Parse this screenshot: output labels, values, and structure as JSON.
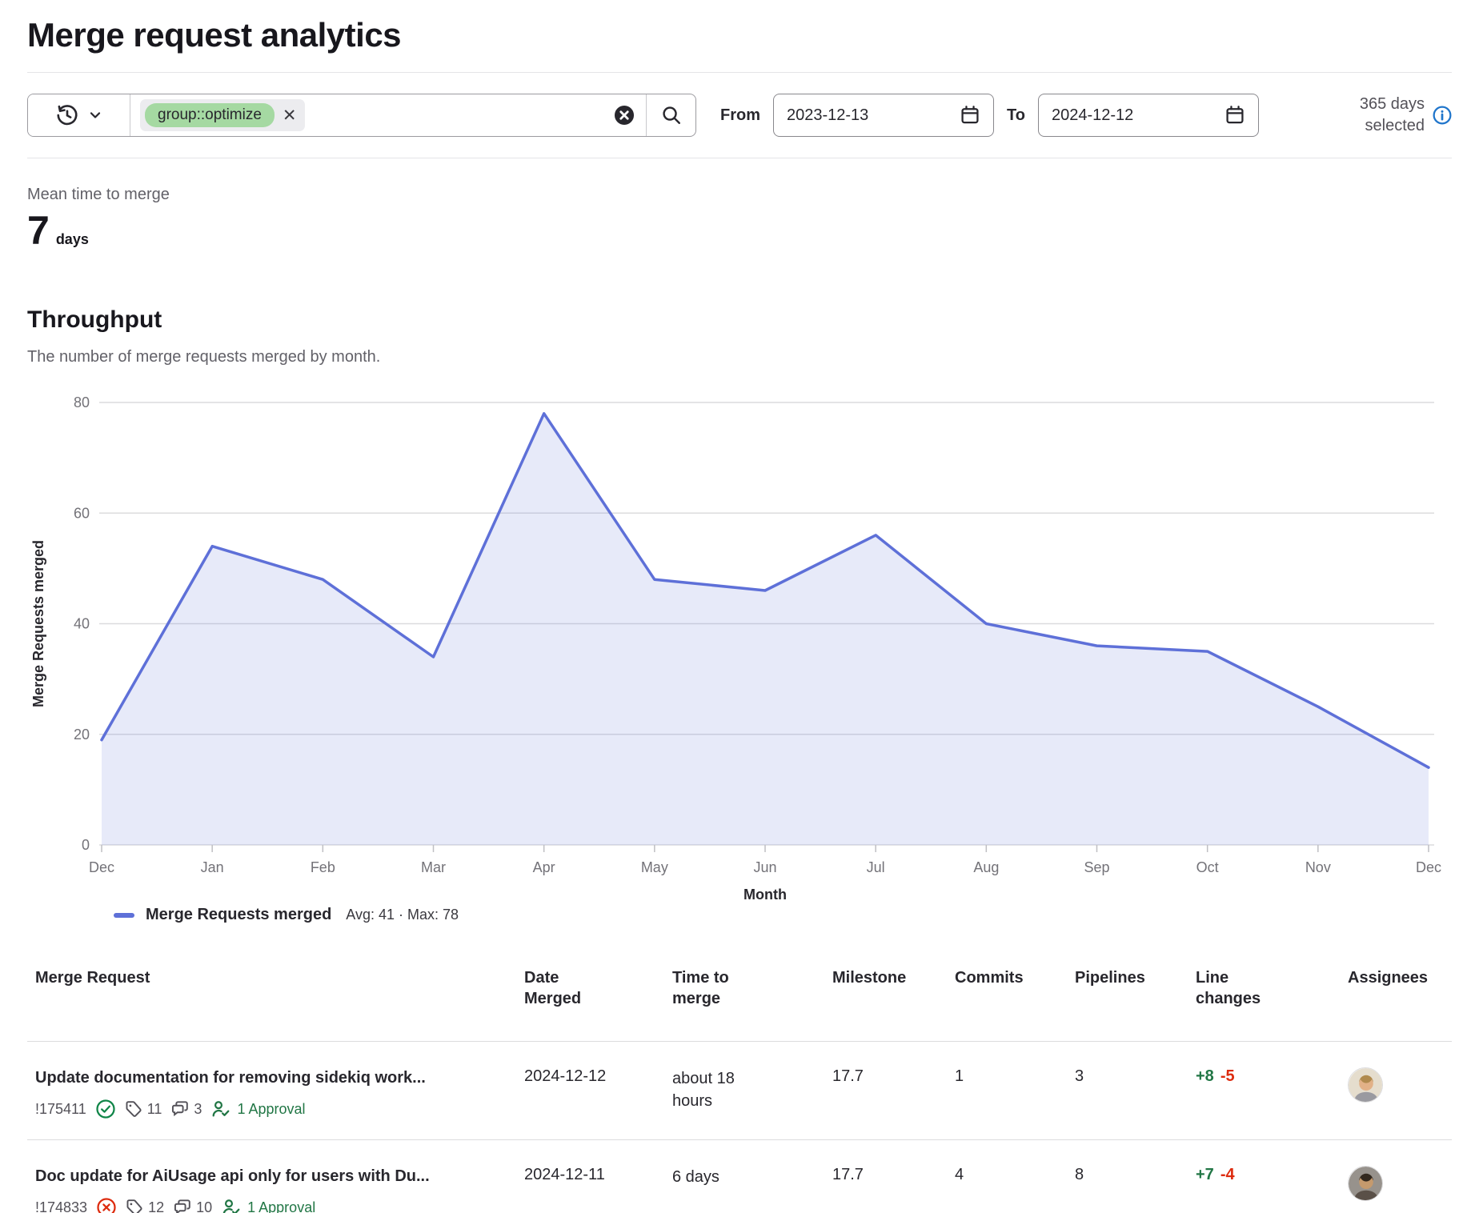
{
  "page": {
    "title": "Merge request analytics"
  },
  "filter_bar": {
    "token": "group::optimize",
    "from_label": "From",
    "from_value": "2023-12-13",
    "to_label": "To",
    "to_value": "2024-12-12",
    "days_selected": "365 days selected"
  },
  "icons": {
    "history": "clock-with-undo-arrow",
    "chevron_down": "chevron-down",
    "clear": "filled-circle-x",
    "search": "magnifier",
    "calendar": "calendar",
    "info": "circled-i",
    "merged": "check-circle",
    "closed": "x-circle",
    "labels": "tag",
    "comments": "speech-bubbles",
    "approval": "person-check"
  },
  "colors": {
    "line_blue": "#5e70d8",
    "token_green": "#a5d9a2",
    "approval_green": "#217645",
    "merged_green": "#108548",
    "closed_red": "#dd2b0e",
    "info_blue": "#1f75cb"
  },
  "metric": {
    "label": "Mean time to merge",
    "value": "7",
    "unit": "days"
  },
  "throughput": {
    "title": "Throughput",
    "subtitle": "The number of merge requests merged by month.",
    "legend_label": "Merge Requests merged",
    "legend_stats": "Avg: 41 · Max: 78"
  },
  "chart_data": {
    "type": "area",
    "title": "Throughput",
    "categories": [
      "Dec",
      "Jan",
      "Feb",
      "Mar",
      "Apr",
      "May",
      "Jun",
      "Jul",
      "Aug",
      "Sep",
      "Oct",
      "Nov",
      "Dec"
    ],
    "values": [
      19,
      54,
      48,
      34,
      78,
      48,
      46,
      56,
      40,
      36,
      35,
      25,
      14
    ],
    "series_name": "Merge Requests merged",
    "avg": 41,
    "max": 78,
    "xlabel": "Month",
    "ylabel": "Merge Requests merged",
    "ylim": [
      0,
      80
    ],
    "yticks": [
      0,
      20,
      40,
      60,
      80
    ],
    "grid": true,
    "legend_position": "bottom-left",
    "line_color": "#5e70d8",
    "area_color": "rgba(94,112,216,0.15)"
  },
  "table": {
    "headers": [
      "Merge Request",
      "Date Merged",
      "Time to merge",
      "Milestone",
      "Commits",
      "Pipelines",
      "Line changes",
      "Assignees"
    ],
    "rows": [
      {
        "title": "Update documentation for removing sidekiq work...",
        "ref": "!175411",
        "status_icon": "check-circle",
        "labels_count": "11",
        "comments_count": "3",
        "approvals": "1 Approval",
        "date_merged": "2024-12-12",
        "time_to_merge": "about 18 hours",
        "milestone": "17.7",
        "commits": "1",
        "pipelines": "3",
        "additions": "+8",
        "deletions": "-5",
        "assignee_avatar": "avatar-light"
      },
      {
        "title": "Doc update for AiUsage api only for users with Du...",
        "ref": "!174833",
        "status_icon": "x-circle",
        "labels_count": "12",
        "comments_count": "10",
        "approvals": "1 Approval",
        "date_merged": "2024-12-11",
        "time_to_merge": "6 days",
        "milestone": "17.7",
        "commits": "4",
        "pipelines": "8",
        "additions": "+7",
        "deletions": "-4",
        "assignee_avatar": "avatar-dark"
      }
    ]
  }
}
